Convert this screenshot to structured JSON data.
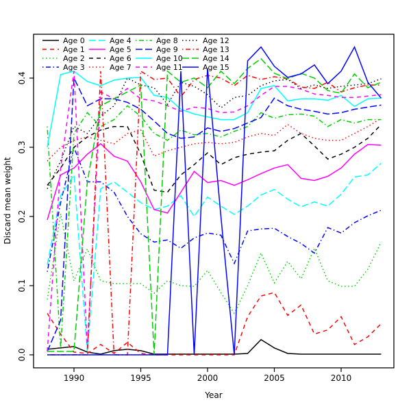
{
  "chart_data": {
    "type": "line",
    "title": "",
    "xlabel": "Year",
    "ylabel": "Discard mean weight",
    "x_ticks": [
      1990,
      1995,
      2000,
      2005,
      2010
    ],
    "y_ticks": [
      "0.0",
      "0.1",
      "0.2",
      "0.3",
      "0.4"
    ],
    "xlim": [
      1987,
      2014
    ],
    "ylim": [
      0.0,
      0.463
    ],
    "grid": false,
    "legend_position": "top-left",
    "legend_columns": 4,
    "x": [
      1988,
      1989,
      1990,
      1991,
      1992,
      1993,
      1994,
      1995,
      1996,
      1997,
      1998,
      1999,
      2000,
      2001,
      2002,
      2003,
      2004,
      2005,
      2006,
      2007,
      2008,
      2009,
      2010,
      2011,
      2012,
      2013
    ],
    "palette": {
      "black": "#000000",
      "red": "#FF0000",
      "green": "#00CD00",
      "blue": "#0000FF",
      "cyan": "#00FFFF",
      "magenta": "#FF00FF"
    },
    "series": [
      {
        "name": "Age 0",
        "color": "#000000",
        "linetype": "solid",
        "values": [
          0.008,
          0.01,
          0.012,
          0.004,
          0.001,
          0.006,
          0.008,
          0.006,
          0.001,
          0.001,
          0.001,
          0.001,
          0.001,
          0.001,
          0.001,
          0.002,
          0.022,
          0.01,
          0.002,
          0.001,
          0.001,
          0.001,
          0.001,
          0.001,
          0.001,
          0.001
        ]
      },
      {
        "name": "Age 1",
        "color": "#FF0000",
        "linetype": "dashed",
        "values": [
          0.06,
          0.03,
          0.004,
          0.002,
          0.015,
          0.002,
          0.018,
          0.002,
          0.0,
          0.0,
          0.0,
          0.0,
          0.0,
          0.0,
          0.0,
          0.055,
          0.085,
          0.09,
          0.057,
          0.072,
          0.03,
          0.036,
          0.055,
          0.015,
          0.026,
          0.045
        ]
      },
      {
        "name": "Age 2",
        "color": "#00CD00",
        "linetype": "dotted",
        "values": [
          0.08,
          0.204,
          0.107,
          0.153,
          0.107,
          0.103,
          0.103,
          0.103,
          0.089,
          0.107,
          0.1,
          0.099,
          0.122,
          0.09,
          0.06,
          0.1,
          0.147,
          0.104,
          0.135,
          0.11,
          0.154,
          0.107,
          0.099,
          0.099,
          0.124,
          0.163
        ]
      },
      {
        "name": "Age 3",
        "color": "#0000FF",
        "linetype": "dotdash",
        "values": [
          0.12,
          0.22,
          0.3,
          0.25,
          0.25,
          0.235,
          0.2,
          0.175,
          0.163,
          0.166,
          0.154,
          0.169,
          0.176,
          0.173,
          0.132,
          0.179,
          0.182,
          0.183,
          0.171,
          0.161,
          0.147,
          0.184,
          0.176,
          0.191,
          0.201,
          0.209
        ]
      },
      {
        "name": "Age 4",
        "color": "#00FFFF",
        "linetype": "longdash",
        "values": [
          0.13,
          0.23,
          0.26,
          0.005,
          0.24,
          0.25,
          0.235,
          0.22,
          0.21,
          0.215,
          0.23,
          0.2,
          0.228,
          0.215,
          0.203,
          0.215,
          0.231,
          0.239,
          0.225,
          0.214,
          0.221,
          0.215,
          0.232,
          0.257,
          0.26,
          0.277
        ]
      },
      {
        "name": "Age 5",
        "color": "#FF00FF",
        "linetype": "solid",
        "values": [
          0.195,
          0.26,
          0.27,
          0.29,
          0.305,
          0.287,
          0.28,
          0.25,
          0.21,
          0.205,
          0.235,
          0.265,
          0.249,
          0.252,
          0.245,
          0.253,
          0.262,
          0.27,
          0.275,
          0.255,
          0.252,
          0.258,
          0.27,
          0.29,
          0.304,
          0.303
        ]
      },
      {
        "name": "Age 6",
        "color": "#000000",
        "linetype": "dashed",
        "values": [
          0.245,
          0.27,
          0.3,
          0.315,
          0.325,
          0.33,
          0.33,
          0.29,
          0.238,
          0.235,
          0.26,
          0.275,
          0.292,
          0.275,
          0.285,
          0.29,
          0.293,
          0.295,
          0.31,
          0.32,
          0.302,
          0.283,
          0.29,
          0.3,
          0.313,
          0.333
        ]
      },
      {
        "name": "Age 7",
        "color": "#FF0000",
        "linetype": "dotted",
        "values": [
          0.28,
          0.3,
          0.31,
          0.315,
          0.31,
          0.305,
          0.32,
          0.325,
          0.287,
          0.295,
          0.3,
          0.305,
          0.307,
          0.305,
          0.307,
          0.315,
          0.32,
          0.317,
          0.333,
          0.32,
          0.313,
          0.31,
          0.31,
          0.32,
          0.33,
          0.342
        ]
      },
      {
        "name": "Age 8",
        "color": "#00CD00",
        "linetype": "dotdash",
        "values": [
          0.33,
          0.01,
          0.32,
          0.35,
          0.33,
          0.34,
          0.36,
          0.345,
          0.32,
          0.31,
          0.325,
          0.318,
          0.32,
          0.315,
          0.323,
          0.33,
          0.35,
          0.342,
          0.347,
          0.348,
          0.345,
          0.33,
          0.34,
          0.335,
          0.34,
          0.34
        ]
      },
      {
        "name": "Age 9",
        "color": "#0000FF",
        "linetype": "longdash",
        "values": [
          0.005,
          0.05,
          0.4,
          0.36,
          0.37,
          0.37,
          0.365,
          0.355,
          0.338,
          0.32,
          0.313,
          0.315,
          0.328,
          0.323,
          0.327,
          0.335,
          0.343,
          0.371,
          0.36,
          0.355,
          0.352,
          0.348,
          0.35,
          0.355,
          0.358,
          0.361
        ]
      },
      {
        "name": "Age 10",
        "color": "#00FFFF",
        "linetype": "solid",
        "values": [
          0.3,
          0.405,
          0.41,
          0.395,
          0.389,
          0.397,
          0.4,
          0.401,
          0.375,
          0.372,
          0.355,
          0.348,
          0.344,
          0.34,
          0.34,
          0.35,
          0.385,
          0.389,
          0.367,
          0.37,
          0.37,
          0.368,
          0.375,
          0.359,
          0.37,
          0.371
        ]
      },
      {
        "name": "Age 11",
        "color": "#FF00FF",
        "linetype": "dashed",
        "values": [
          0.005,
          0.27,
          0.41,
          0.01,
          0.38,
          0.37,
          0.385,
          0.37,
          0.367,
          0.36,
          0.352,
          0.358,
          0.356,
          0.35,
          0.351,
          0.36,
          0.375,
          0.388,
          0.388,
          0.384,
          0.377,
          0.375,
          0.372,
          0.372,
          0.374,
          0.376
        ]
      },
      {
        "name": "Age 12",
        "color": "#000000",
        "linetype": "dotted",
        "values": [
          0.24,
          0.28,
          0.33,
          0.32,
          0.345,
          0.36,
          0.4,
          0.39,
          0.386,
          0.362,
          0.394,
          0.388,
          0.376,
          0.357,
          0.372,
          0.375,
          0.389,
          0.396,
          0.398,
          0.385,
          0.39,
          0.385,
          0.388,
          0.39,
          0.392,
          0.399
        ]
      },
      {
        "name": "Age 13",
        "color": "#FF0000",
        "linetype": "dotdash",
        "values": [
          0.0,
          0.0,
          0.0,
          0.0,
          0.41,
          0.0,
          0.0,
          0.41,
          0.398,
          0.4,
          0.373,
          0.398,
          0.404,
          0.4,
          0.389,
          0.404,
          0.398,
          0.402,
          0.399,
          0.387,
          0.385,
          0.394,
          0.38,
          0.386,
          0.39,
          0.39
        ]
      },
      {
        "name": "Age 14",
        "color": "#00CD00",
        "linetype": "longdash",
        "values": [
          0.005,
          0.005,
          0.005,
          0.25,
          0.36,
          0.37,
          0.38,
          0.39,
          0.0,
          0.41,
          0.394,
          0.4,
          0.386,
          0.41,
          0.392,
          0.414,
          0.428,
          0.407,
          0.399,
          0.407,
          0.4,
          0.382,
          0.378,
          0.406,
          0.386,
          0.394
        ]
      },
      {
        "name": "Age 15",
        "color": "#0000FF",
        "linetype": "solid",
        "values": [
          0.0,
          0.0,
          0.0,
          0.0,
          0.0,
          0.0,
          0.0,
          0.0,
          0.0,
          0.0,
          0.41,
          0.0,
          0.414,
          0.2,
          0.0,
          0.425,
          0.445,
          0.417,
          0.401,
          0.406,
          0.419,
          0.392,
          0.41,
          0.445,
          0.394,
          0.371
        ]
      }
    ]
  }
}
